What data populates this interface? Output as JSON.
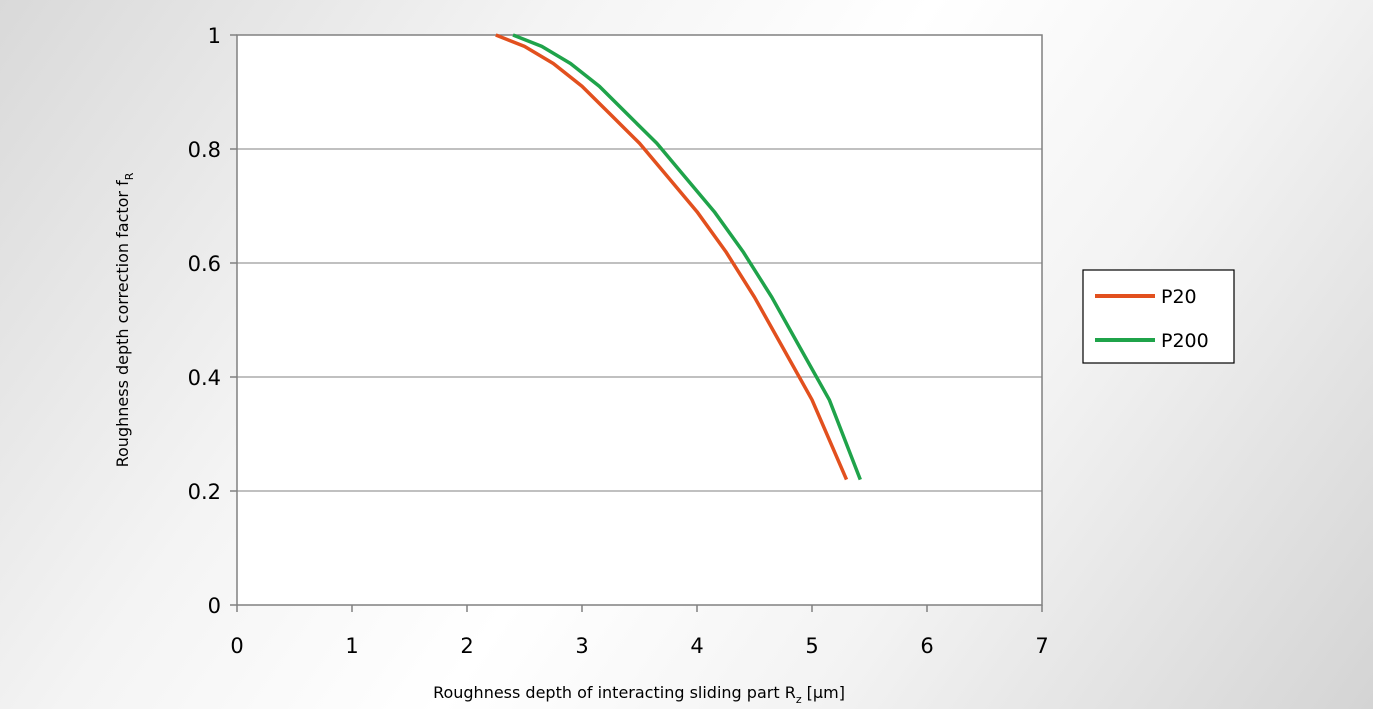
{
  "chart_data": {
    "type": "line",
    "xlabel": "Roughness depth of interacting sliding part R",
    "xlabel_sub": "z",
    "xlabel_unit": " [µm]",
    "ylabel": "Roughness depth correction factor f",
    "ylabel_sub": "R",
    "xlim": [
      0,
      7
    ],
    "ylim": [
      0,
      1
    ],
    "xticks": [
      "0",
      "1",
      "2",
      "3",
      "4",
      "5",
      "6",
      "7"
    ],
    "yticks": [
      "0",
      "0.2",
      "0.4",
      "0.6",
      "0.8",
      "1"
    ],
    "grid": "horizontal",
    "legend_position": "right",
    "series": [
      {
        "name": "P20",
        "color": "#e2501e",
        "x": [
          2.25,
          2.5,
          2.75,
          3.0,
          3.25,
          3.5,
          3.75,
          4.0,
          4.25,
          4.5,
          4.75,
          5.0,
          5.3
        ],
        "y": [
          1.0,
          0.98,
          0.95,
          0.91,
          0.86,
          0.81,
          0.75,
          0.69,
          0.62,
          0.54,
          0.45,
          0.36,
          0.22
        ]
      },
      {
        "name": "P200",
        "color": "#1fa34a",
        "x": [
          2.4,
          2.65,
          2.9,
          3.15,
          3.4,
          3.65,
          3.9,
          4.15,
          4.4,
          4.65,
          4.9,
          5.15,
          5.42
        ],
        "y": [
          1.0,
          0.98,
          0.95,
          0.91,
          0.86,
          0.81,
          0.75,
          0.69,
          0.62,
          0.54,
          0.45,
          0.36,
          0.22
        ]
      }
    ]
  }
}
